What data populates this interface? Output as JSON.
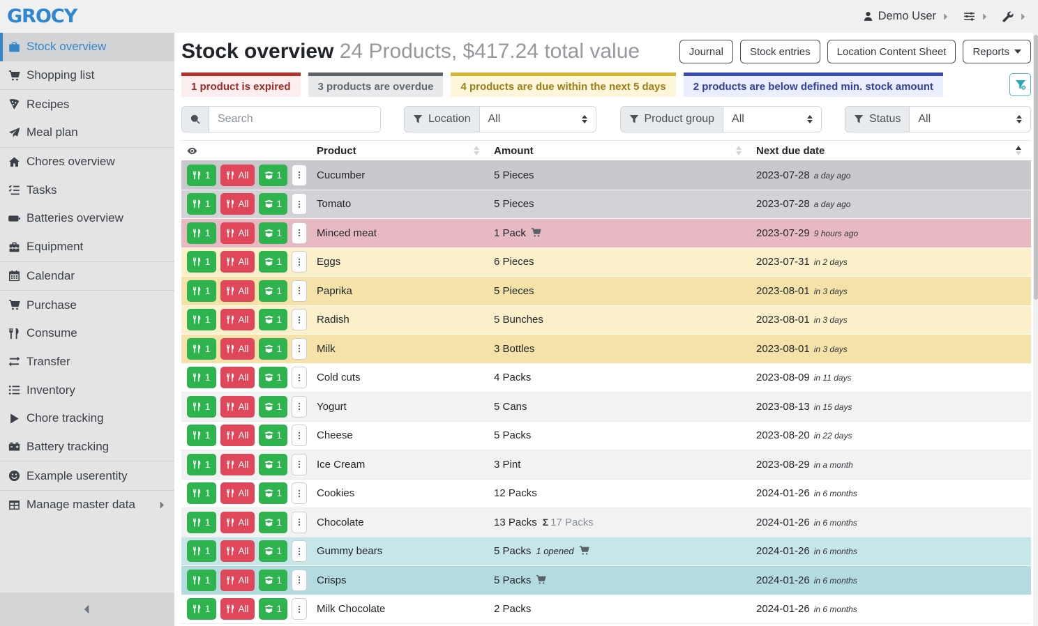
{
  "navbar": {
    "logo": "GROCY",
    "user_label": "Demo User"
  },
  "sidebar": {
    "groups": [
      {
        "items": [
          {
            "icon": "box",
            "label": "Stock overview",
            "active": true
          },
          {
            "icon": "cart",
            "label": "Shopping list"
          }
        ]
      },
      {
        "items": [
          {
            "icon": "pizza-slice",
            "label": "Recipes"
          },
          {
            "icon": "paper-plane",
            "label": "Meal plan"
          }
        ]
      },
      {
        "items": [
          {
            "icon": "home",
            "label": "Chores overview"
          },
          {
            "icon": "list-check",
            "label": "Tasks"
          },
          {
            "icon": "battery",
            "label": "Batteries overview"
          },
          {
            "icon": "toolbox",
            "label": "Equipment"
          }
        ]
      },
      {
        "items": [
          {
            "icon": "calendar",
            "label": "Calendar"
          }
        ]
      },
      {
        "items": [
          {
            "icon": "cart-plus",
            "label": "Purchase"
          },
          {
            "icon": "utensils",
            "label": "Consume"
          },
          {
            "icon": "exchange",
            "label": "Transfer"
          },
          {
            "icon": "list",
            "label": "Inventory"
          },
          {
            "icon": "play",
            "label": "Chore tracking"
          },
          {
            "icon": "car-battery",
            "label": "Battery tracking"
          }
        ]
      },
      {
        "items": [
          {
            "icon": "smiley",
            "label": "Example userentity"
          }
        ]
      },
      {
        "items": [
          {
            "icon": "table",
            "label": "Manage master data",
            "chevron": true
          }
        ]
      }
    ]
  },
  "header": {
    "title": "Stock overview",
    "subtitle": "24 Products, $417.24 total value",
    "buttons": [
      {
        "label": "Journal"
      },
      {
        "label": "Stock entries"
      },
      {
        "label": "Location Content Sheet"
      },
      {
        "label": "Reports",
        "caret": true
      }
    ]
  },
  "status_cards": [
    {
      "label": "1 product is expired",
      "border": "#b3312b",
      "bg": "#fceeee",
      "color": "#9c2b26"
    },
    {
      "label": "3 products are overdue",
      "border": "#5a6268",
      "bg": "#e8e9eb",
      "color": "#64686d"
    },
    {
      "label": "4 products are due within the next 5 days",
      "border": "#d8b435",
      "bg": "#fdf6da",
      "color": "#9c7f15"
    },
    {
      "label": "2 products are below defined min. stock amount",
      "border": "#3c4cb0",
      "bg": "#eaedfb",
      "color": "#32409f"
    }
  ],
  "filters": {
    "search_placeholder": "Search",
    "groups": [
      {
        "label": "Location",
        "value": "All"
      },
      {
        "label": "Product group",
        "value": "All"
      },
      {
        "label": "Status",
        "value": "All"
      }
    ]
  },
  "table": {
    "columns": {
      "product": "Product",
      "amount": "Amount",
      "due": "Next due date"
    },
    "row_buttons": {
      "consume_one": {
        "label": "1",
        "icon": "utensils",
        "color": "green"
      },
      "consume_all": {
        "label": "All",
        "icon": "utensils",
        "color": "red"
      },
      "open_one": {
        "label": "1",
        "icon": "box-open",
        "color": "green"
      },
      "menu": {
        "icon": "ellipsis-v"
      }
    },
    "sum_icon_glyph": "Σ",
    "rows": [
      {
        "name": "Cucumber",
        "amount": "5 Pieces",
        "date": "2023-07-28",
        "rel": "a day ago",
        "bg": "#c9c9cd"
      },
      {
        "name": "Tomato",
        "amount": "5 Pieces",
        "date": "2023-07-28",
        "rel": "a day ago",
        "bg": "#d3d3d7"
      },
      {
        "name": "Minced meat",
        "amount": "1 Pack",
        "cart": true,
        "date": "2023-07-29",
        "rel": "9 hours ago",
        "bg": "#e7b9c3"
      },
      {
        "name": "Eggs",
        "amount": "6 Pieces",
        "date": "2023-07-31",
        "rel": "in 2 days",
        "bg": "#fbf0ca"
      },
      {
        "name": "Paprika",
        "amount": "5 Pieces",
        "date": "2023-08-01",
        "rel": "in 3 days",
        "bg": "#f4e2a8"
      },
      {
        "name": "Radish",
        "amount": "5 Bunches",
        "date": "2023-08-01",
        "rel": "in 3 days",
        "bg": "#fbf0ca"
      },
      {
        "name": "Milk",
        "amount": "3 Bottles",
        "date": "2023-08-01",
        "rel": "in 3 days",
        "bg": "#f4e2a8"
      },
      {
        "name": "Cold cuts",
        "amount": "4 Packs",
        "date": "2023-08-09",
        "rel": "in 11 days",
        "bg": "#ffffff"
      },
      {
        "name": "Yogurt",
        "amount": "5 Cans",
        "date": "2023-08-13",
        "rel": "in 15 days",
        "bg": "#f2f2f2"
      },
      {
        "name": "Cheese",
        "amount": "5 Packs",
        "date": "2023-08-20",
        "rel": "in 22 days",
        "bg": "#ffffff"
      },
      {
        "name": "Ice Cream",
        "amount": "3 Pint",
        "date": "2023-08-29",
        "rel": "in a month",
        "bg": "#f2f2f2"
      },
      {
        "name": "Cookies",
        "amount": "12 Packs",
        "date": "2024-01-26",
        "rel": "in 6 months",
        "bg": "#ffffff"
      },
      {
        "name": "Chocolate",
        "amount": "13 Packs",
        "aggregate": "17 Packs",
        "date": "2024-01-26",
        "rel": "in 6 months",
        "bg": "#f2f2f2"
      },
      {
        "name": "Gummy bears",
        "amount": "5 Packs",
        "opened": "1 opened",
        "cart": true,
        "date": "2024-01-26",
        "rel": "in 6 months",
        "bg": "#c6e6ea"
      },
      {
        "name": "Crisps",
        "amount": "5 Packs",
        "cart": true,
        "date": "2024-01-26",
        "rel": "in 6 months",
        "bg": "#b4dbe0"
      },
      {
        "name": "Milk Chocolate",
        "amount": "2 Packs",
        "date": "2024-01-26",
        "rel": "in 6 months",
        "bg": "#ffffff"
      }
    ]
  },
  "colors": {
    "accent_blue": "#3787c8",
    "button_green": "#2eb34f",
    "button_red": "#e0475a",
    "teal_filter": "#22a7bd"
  }
}
